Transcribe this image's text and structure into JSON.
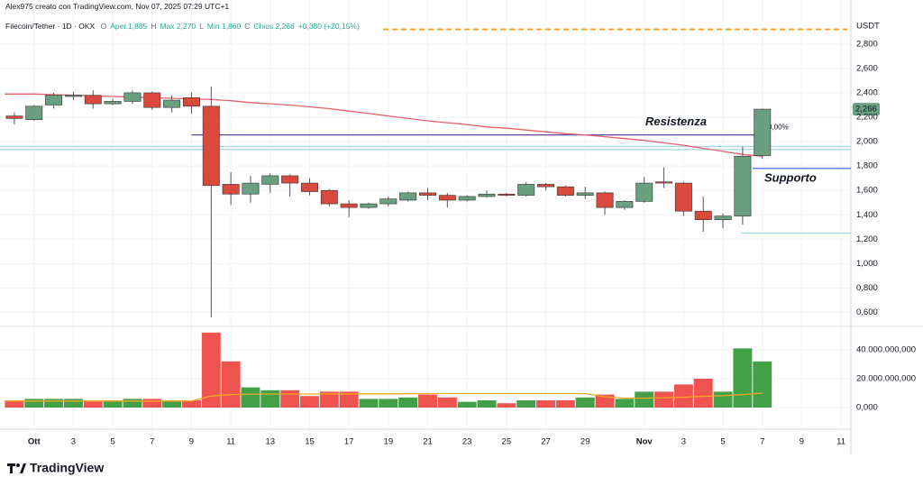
{
  "attribution": "Alex975 creato con TradingView.com, Nov 07, 2025 07:29 UTC+1",
  "legend": {
    "symbol": "Filecoin/Tether · 1D · OKX",
    "fields": [
      {
        "key": "O",
        "text": "Aper.1,885"
      },
      {
        "key": "H",
        "text": "Max 2,270"
      },
      {
        "key": "L",
        "text": "Min 1,860"
      },
      {
        "key": "C",
        "text": "Chius 2,266"
      }
    ],
    "change": "+0,380 (+20,15%)"
  },
  "footer": "TradingView",
  "chart_data": [
    {
      "type": "candlestick",
      "currency": "USDT",
      "categories": [
        null,
        "Ott",
        null,
        "3",
        null,
        "5",
        null,
        "7",
        null,
        "9",
        null,
        "11",
        null,
        "13",
        null,
        "15",
        null,
        "17",
        null,
        "19",
        null,
        "21",
        null,
        "23",
        null,
        "25",
        null,
        "27",
        null,
        "29",
        null,
        null,
        "Nov",
        null,
        "3",
        null,
        "5",
        null,
        "7",
        null,
        "9",
        null,
        "11"
      ],
      "open": [
        2.21,
        2.18,
        2.3,
        2.37,
        2.38,
        2.31,
        2.33,
        2.4,
        2.28,
        2.36,
        2.29,
        1.65,
        1.57,
        1.65,
        1.72,
        1.66,
        1.6,
        1.49,
        1.46,
        1.49,
        1.52,
        1.58,
        1.56,
        1.52,
        1.55,
        1.57,
        1.56,
        1.65,
        1.63,
        1.56,
        1.58,
        1.46,
        1.51,
        1.67,
        1.66,
        1.43,
        1.36,
        1.39,
        1.885,
        null,
        null,
        null,
        null
      ],
      "high": [
        2.24,
        2.3,
        2.4,
        2.41,
        2.42,
        2.35,
        2.42,
        2.41,
        2.38,
        2.4,
        2.45,
        1.75,
        1.72,
        1.74,
        1.73,
        1.7,
        1.61,
        1.52,
        1.5,
        1.55,
        1.59,
        1.62,
        1.58,
        1.56,
        1.6,
        1.58,
        1.67,
        1.66,
        1.64,
        1.63,
        1.59,
        1.52,
        1.71,
        1.79,
        1.67,
        1.55,
        1.41,
        1.96,
        2.27,
        null,
        null,
        null,
        null
      ],
      "low": [
        2.14,
        2.17,
        2.27,
        2.34,
        2.27,
        2.3,
        2.31,
        2.26,
        2.24,
        2.23,
        0.56,
        1.48,
        1.5,
        1.58,
        1.55,
        1.56,
        1.47,
        1.38,
        1.45,
        1.47,
        1.51,
        1.52,
        1.46,
        1.51,
        1.54,
        1.55,
        1.55,
        1.6,
        1.55,
        1.53,
        1.4,
        1.44,
        1.5,
        1.62,
        1.39,
        1.26,
        1.29,
        1.32,
        1.86,
        null,
        null,
        null,
        null
      ],
      "close": [
        2.19,
        2.29,
        2.38,
        2.38,
        2.31,
        2.33,
        2.4,
        2.28,
        2.34,
        2.29,
        1.64,
        1.57,
        1.66,
        1.72,
        1.66,
        1.59,
        1.49,
        1.46,
        1.49,
        1.53,
        1.58,
        1.56,
        1.52,
        1.55,
        1.57,
        1.56,
        1.65,
        1.63,
        1.56,
        1.58,
        1.46,
        1.51,
        1.66,
        1.66,
        1.43,
        1.36,
        1.39,
        1.88,
        2.266,
        null,
        null,
        null,
        null
      ],
      "ma": [
        2.39,
        2.39,
        2.385,
        2.38,
        2.375,
        2.37,
        2.365,
        2.36,
        2.355,
        2.35,
        2.345,
        2.335,
        2.32,
        2.31,
        2.3,
        2.285,
        2.27,
        2.25,
        2.23,
        2.21,
        2.19,
        2.17,
        2.155,
        2.14,
        2.12,
        2.11,
        2.095,
        2.08,
        2.065,
        2.055,
        2.04,
        2.025,
        2.01,
        1.99,
        1.97,
        1.945,
        1.92,
        1.895,
        1.88,
        null,
        null,
        null,
        null
      ],
      "up_color": "#6a9f80",
      "down_color": "#d9493d",
      "ma_color": "#e8606a",
      "ylim": [
        0.5,
        3.05
      ],
      "yticks": [
        {
          "value": 0.6,
          "label": "0,600"
        },
        {
          "value": 0.8,
          "label": "0,800"
        },
        {
          "value": 1,
          "label": "1,000"
        },
        {
          "value": 1.2,
          "label": "1,200"
        },
        {
          "value": 1.4,
          "label": "1,400"
        },
        {
          "value": 1.6,
          "label": "1,600"
        },
        {
          "value": 1.8,
          "label": "1,800"
        },
        {
          "value": 2,
          "label": "2,000"
        },
        {
          "value": 2.2,
          "label": "2,200"
        },
        {
          "value": 2.4,
          "label": "2,400"
        },
        {
          "value": 2.6,
          "label": "2,600"
        },
        {
          "value": 2.8,
          "label": "2,800"
        }
      ],
      "grid": true,
      "last_price": {
        "value": 2.266,
        "label": "2,266"
      },
      "hlines": [
        {
          "value": 2.055,
          "color": "#5b46a6",
          "label": "Resistenza",
          "label_color": "#b45cc4",
          "note": "0,00%"
        },
        {
          "value": 1.78,
          "color": "#2962ff",
          "label": "Supporto",
          "label_color": "#2962ff"
        },
        {
          "value": 1.96,
          "color": "#a6d8ea"
        },
        {
          "value": 1.935,
          "color": "#a6d8ea"
        },
        {
          "value": 1.25,
          "color": "#a6d8ea"
        },
        {
          "value": 2.92,
          "color": "#f5a623",
          "dash": true
        }
      ]
    },
    {
      "type": "bar",
      "values": [
        5000000000,
        6000000000,
        6000000000,
        6000000000,
        4500000000,
        5000000000,
        6000000000,
        6000000000,
        5000000000,
        5000000000,
        52000000000,
        32000000000,
        14000000000,
        12000000000,
        12000000000,
        8000000000,
        11000000000,
        11000000000,
        6000000000,
        6000000000,
        7000000000,
        9000000000,
        7000000000,
        4000000000,
        5000000000,
        3000000000,
        5000000000,
        5000000000,
        5000000000,
        7000000000,
        9000000000,
        6000000000,
        11000000000,
        11000000000,
        16000000000,
        20000000000,
        11000000000,
        41000000000,
        32000000000,
        null,
        null,
        null,
        null
      ],
      "ma": [
        4500000000,
        4500000000,
        4500000000,
        4500000000,
        4500000000,
        4500000000,
        4500000000,
        4500000000,
        4500000000,
        4600000000,
        8000000000,
        9000000000,
        9300000000,
        9400000000,
        9400000000,
        9400000000,
        9500000000,
        9500000000,
        9500000000,
        9500000000,
        9600000000,
        9700000000,
        9700000000,
        9700000000,
        9700000000,
        9700000000,
        9700000000,
        9700000000,
        9700000000,
        9700000000,
        7500000000,
        6500000000,
        6500000000,
        6800000000,
        7200000000,
        7800000000,
        8200000000,
        9000000000,
        10000000000,
        null,
        null,
        null,
        null
      ],
      "up_color": "#43a047",
      "down_color": "#ef5350",
      "ma_color": "#f5a623",
      "ylim": [
        -15000000000,
        54400000000
      ],
      "yticks": [
        {
          "value": 0,
          "label": "0,000"
        },
        {
          "value": 20000000000,
          "label": "20.000.000,000"
        },
        {
          "value": 40000000000,
          "label": "40.000.000,000"
        }
      ]
    }
  ]
}
